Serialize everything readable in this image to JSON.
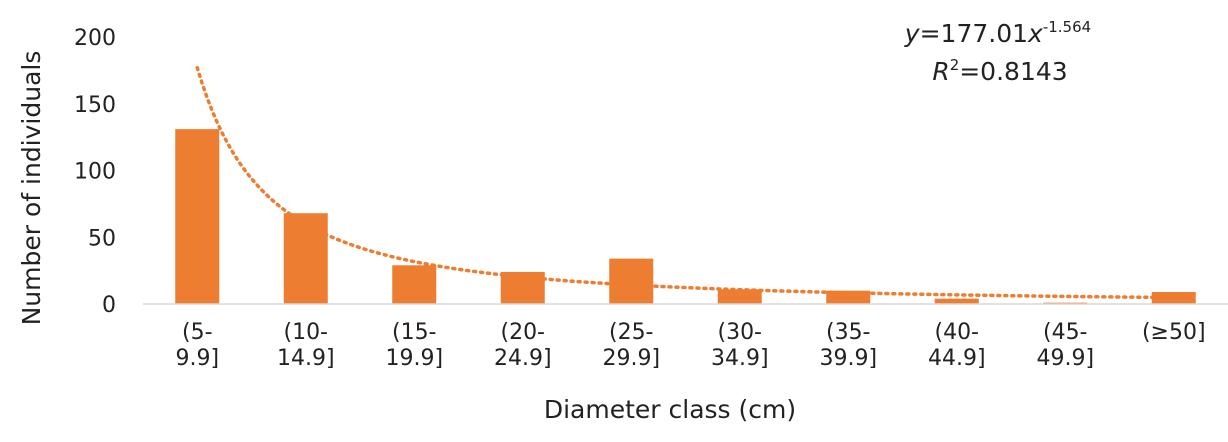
{
  "chart_data": {
    "type": "bar",
    "title": "",
    "xlabel": "Diameter class (cm)",
    "ylabel": "Number of individuals",
    "ylim": [
      0,
      200
    ],
    "yticks": [
      0,
      50,
      100,
      150,
      200
    ],
    "categories": [
      [
        "(5-",
        "9.9]"
      ],
      [
        "(10-",
        "14.9]"
      ],
      [
        "(15-",
        "19.9]"
      ],
      [
        "(20-",
        "24.9]"
      ],
      [
        "(25-",
        "29.9]"
      ],
      [
        "(30-",
        "34.9]"
      ],
      [
        "(35-",
        "39.9]"
      ],
      [
        "(40-",
        "44.9]"
      ],
      [
        "(45-",
        "49.9]"
      ],
      [
        "(≥50]"
      ]
    ],
    "values": [
      131,
      68,
      29,
      24,
      34,
      11,
      10,
      4,
      1,
      9
    ],
    "grid": false,
    "bar_color": "#ED7D31",
    "trendline": {
      "type": "power",
      "a": 177.01,
      "b": -1.564,
      "color": "#ED7D31",
      "style": "dotted",
      "equation": {
        "y_var": "y",
        "eq_mid": "=177.01",
        "x_var": "x",
        "exponent": "-1.564",
        "r_var": "R",
        "r_sup": "2",
        "r_rest": "=0.8143"
      }
    }
  }
}
